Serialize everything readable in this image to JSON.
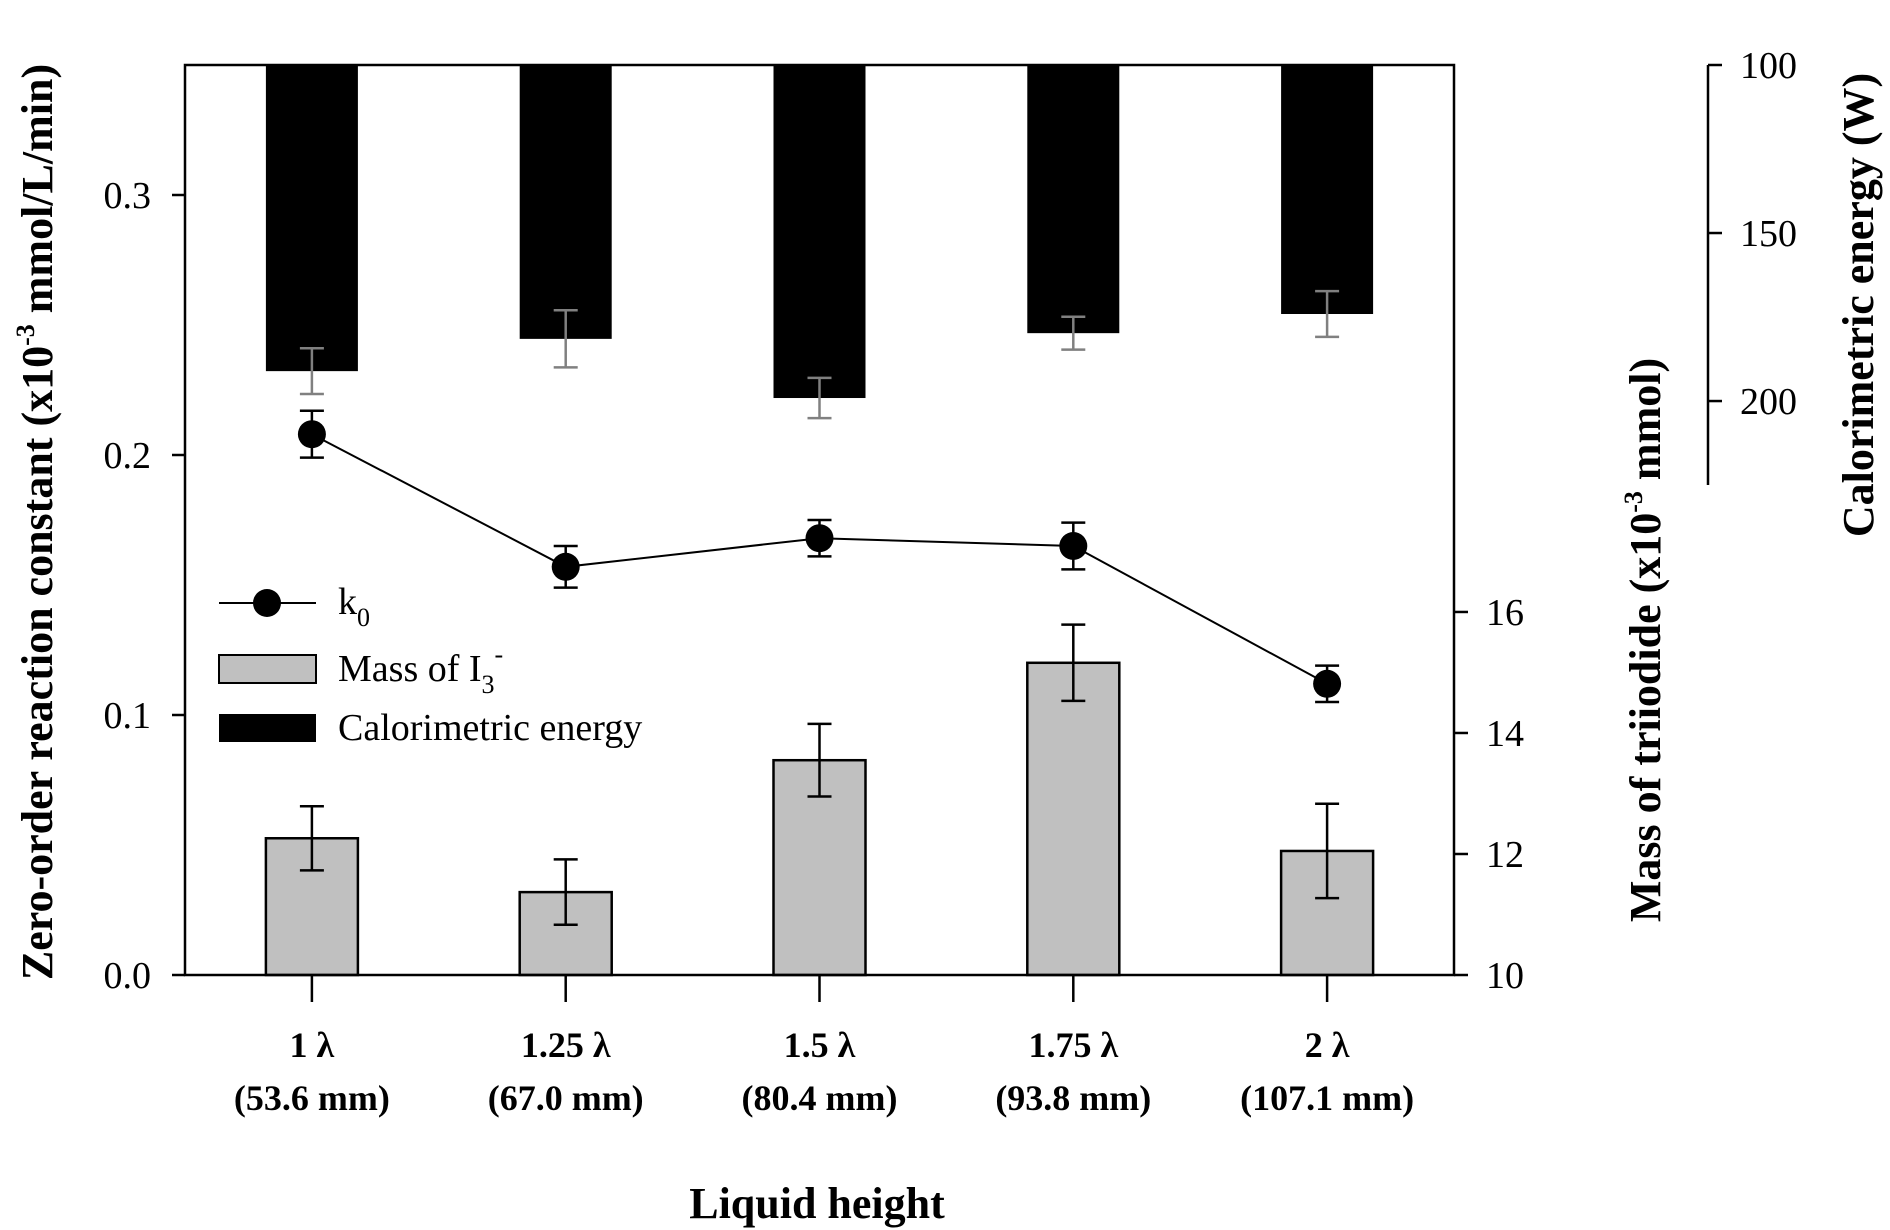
{
  "chart_data": {
    "type": "bar",
    "title": "",
    "xlabel": "Liquid height",
    "categories": [
      {
        "line1": "1 λ",
        "line2": "(53.6 mm)"
      },
      {
        "line1": "1.25 λ",
        "line2": "(67.0 mm)"
      },
      {
        "line1": "1.5 λ",
        "line2": "(80.4 mm)"
      },
      {
        "line1": "1.75 λ",
        "line2": "(93.8 mm)"
      },
      {
        "line1": "2 λ",
        "line2": "(107.1 mm)"
      }
    ],
    "axes": {
      "left": {
        "label_main": "Zero-order reaction constant (x10",
        "label_sup": "-3",
        "label_end": " mmol/L/min)",
        "range": [
          0,
          0.35
        ],
        "ticks": [
          0.0,
          0.1,
          0.2,
          0.3
        ],
        "tick_labels": [
          "0.0",
          "0.1",
          "0.2",
          "0.3"
        ]
      },
      "right": {
        "label_main": "Mass of triiodide (x10",
        "label_sup": "-3",
        "label_end": " mmol)",
        "range": [
          10,
          25.04
        ],
        "ticks": [
          10,
          12,
          14,
          16
        ],
        "tick_labels": [
          "10",
          "12",
          "14",
          "16"
        ]
      },
      "far_right": {
        "label": "Calorimetric energy (W)",
        "range": [
          100,
          370.8
        ],
        "inverted": true,
        "axis_extent": [
          100,
          225
        ],
        "ticks": [
          100,
          150,
          200
        ],
        "tick_labels": [
          "100",
          "150",
          "200"
        ]
      }
    },
    "series": [
      {
        "name": "k0",
        "type": "line",
        "axis": "left",
        "values": [
          0.208,
          0.157,
          0.168,
          0.165,
          0.112
        ],
        "errors": [
          0.009,
          0.008,
          0.007,
          0.009,
          0.007
        ],
        "color": "#000000"
      },
      {
        "name": "Mass of I3-",
        "type": "bar",
        "axis": "right",
        "values": [
          12.26,
          11.37,
          13.55,
          15.16,
          12.05
        ],
        "errors": [
          0.53,
          0.54,
          0.6,
          0.63,
          0.78
        ],
        "color": "#c0c0c0"
      },
      {
        "name": "Calorimetric energy",
        "type": "bar",
        "axis": "far_right",
        "values": [
          191.1,
          181.5,
          199.1,
          179.8,
          174.1
        ],
        "errors": [
          6.8,
          8.5,
          6.0,
          4.9,
          6.8
        ],
        "color": "#000000",
        "error_color": "#808080"
      }
    ],
    "legend": {
      "position": "center-left",
      "items": [
        {
          "label": "k",
          "sub": "0",
          "sup": ""
        },
        {
          "label": "Mass of I",
          "sub": "3",
          "sup": "-"
        },
        {
          "label": "Calorimetric energy",
          "sub": "",
          "sup": ""
        }
      ]
    },
    "grid": false
  }
}
